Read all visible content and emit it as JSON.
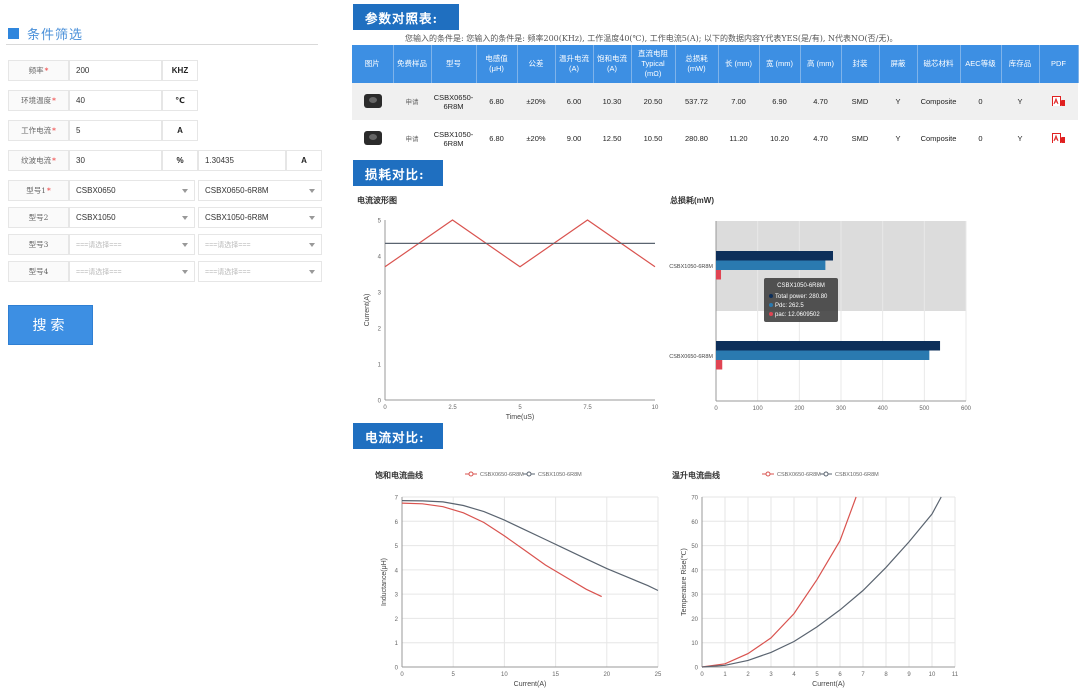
{
  "filter": {
    "title": "条件筛选",
    "rows": [
      {
        "label": "频率",
        "required": true,
        "value": "200",
        "unit": "KHZ"
      },
      {
        "label": "环境温度",
        "required": true,
        "value": "40",
        "unit": "℃"
      },
      {
        "label": "工作电流",
        "required": true,
        "value": "5",
        "unit": "A"
      },
      {
        "label": "纹波电流",
        "required": true,
        "value": "30",
        "unit": "%",
        "extra_value": "1.30435",
        "extra_unit": "A"
      }
    ],
    "models": [
      {
        "label": "型号1",
        "required": true,
        "series": "CSBX0650",
        "part": "CSBX0650-6R8M",
        "placeholder": false
      },
      {
        "label": "型号2",
        "required": false,
        "series": "CSBX1050",
        "part": "CSBX1050-6R8M",
        "placeholder": false
      },
      {
        "label": "型号3",
        "required": false,
        "series": "===请选择===",
        "part": "===请选择===",
        "placeholder": true
      },
      {
        "label": "型号4",
        "required": false,
        "series": "===请选择===",
        "part": "===请选择===",
        "placeholder": true
      }
    ],
    "search_label": "搜索"
  },
  "params": {
    "title": "参数对照表:",
    "condition_text": "您输入的条件是: 您输入的条件是: 频率200(KHz), 工作温度40(℃), 工作电流5(A); 以下的数据内容Y代表YES(是/有), N代表NO(否/无)。",
    "headers": [
      "图片",
      "免费样品",
      "型号",
      "电感值 (μH)",
      "公差",
      "温升电流 (A)",
      "饱和电流 (A)",
      "直流电阻 Typical (mΩ)",
      "总损耗 (mW)",
      "长 (mm)",
      "宽 (mm)",
      "高 (mm)",
      "封装",
      "屏蔽",
      "磁芯材料",
      "AEC等级",
      "库存品",
      "PDF"
    ],
    "rows": [
      {
        "sample": "申请",
        "model": "CSBX0650-6R8M",
        "inductance": "6.80",
        "tolerance": "±20%",
        "temp_rise": "6.00",
        "saturation": "10.30",
        "dcr": "20.50",
        "loss": "537.72",
        "length": "7.00",
        "width": "6.90",
        "height": "4.70",
        "package": "SMD",
        "shield": "Y",
        "core": "Composite",
        "aec": "0",
        "stock": "Y"
      },
      {
        "sample": "申请",
        "model": "CSBX1050-6R8M",
        "inductance": "6.80",
        "tolerance": "±20%",
        "temp_rise": "9.00",
        "saturation": "12.50",
        "dcr": "10.50",
        "loss": "280.80",
        "length": "11.20",
        "width": "10.20",
        "height": "4.70",
        "package": "SMD",
        "shield": "Y",
        "core": "Composite",
        "aec": "0",
        "stock": "Y"
      }
    ]
  },
  "loss_section": {
    "title": "损耗对比:"
  },
  "current_section": {
    "title": "电流对比:"
  },
  "colors": {
    "accent": "#3d8fe3",
    "header_dark": "#1f6fc0",
    "red": "#d9534f",
    "navy": "#0d2f5a",
    "teal": "#2a7ab0",
    "gray": "#5a6470"
  },
  "chart_data": [
    {
      "type": "line",
      "title": "电流波形图",
      "xlabel": "Time(uS)",
      "ylabel": "Current(A)",
      "xlim": [
        0,
        10
      ],
      "ylim": [
        0,
        5
      ],
      "xticks": [
        0,
        2.5,
        5,
        7.5,
        10
      ],
      "yticks": [
        0,
        1,
        2,
        3,
        4,
        5
      ],
      "series": [
        {
          "color": "#d9534f",
          "x": [
            0,
            2.5,
            5,
            7.5,
            10
          ],
          "y": [
            3.7,
            5.0,
            3.7,
            5.0,
            3.7
          ]
        },
        {
          "color": "#5a6470",
          "x": [
            0,
            10
          ],
          "y": [
            4.35,
            4.35
          ]
        }
      ]
    },
    {
      "type": "bar",
      "orientation": "horizontal",
      "title": "总损耗(mW)",
      "categories": [
        "CSBX1050-6R8M",
        "CSBX0650-6R8M"
      ],
      "xlim": [
        0,
        600
      ],
      "xticks": [
        0,
        100,
        200,
        300,
        400,
        500,
        600
      ],
      "series": [
        {
          "name": "Total power",
          "color": "#0d2f5a",
          "values": [
            280.8,
            537.72
          ]
        },
        {
          "name": "Pdc",
          "color": "#2a7ab0",
          "values": [
            262.5,
            512
          ]
        },
        {
          "name": "pac",
          "color": "#e04452",
          "values": [
            12.0609502,
            15
          ]
        }
      ],
      "tooltip": {
        "title": "CSBX1050-6R8M",
        "lines": [
          "Total power: 280.80",
          "Pdc: 262.5",
          "pac: 12.0609502"
        ]
      }
    },
    {
      "type": "line",
      "title": "饱和电流曲线",
      "xlabel": "Current(A)",
      "ylabel": "Inductance(μH)",
      "xlim": [
        0,
        25
      ],
      "ylim": [
        0,
        7
      ],
      "xticks": [
        0,
        5,
        10,
        15,
        20,
        25
      ],
      "yticks": [
        0,
        1,
        2,
        3,
        4,
        5,
        6,
        7
      ],
      "legend": "top",
      "series": [
        {
          "name": "CSBX0650-6R8M",
          "color": "#d9534f",
          "x": [
            0,
            2,
            4,
            6,
            8,
            10,
            12,
            14,
            16,
            18,
            19.5
          ],
          "y": [
            6.75,
            6.72,
            6.6,
            6.35,
            5.95,
            5.4,
            4.8,
            4.2,
            3.7,
            3.2,
            2.9
          ]
        },
        {
          "name": "CSBX1050-6R8M",
          "color": "#5a6470",
          "x": [
            0,
            2,
            4,
            6,
            8,
            10,
            12,
            14,
            16,
            18,
            20,
            22,
            24,
            25
          ],
          "y": [
            6.85,
            6.84,
            6.8,
            6.65,
            6.4,
            6.05,
            5.65,
            5.25,
            4.85,
            4.45,
            4.05,
            3.7,
            3.35,
            3.15
          ]
        }
      ]
    },
    {
      "type": "line",
      "title": "温升电流曲线",
      "xlabel": "Current(A)",
      "ylabel": "Temperature Rise(℃)",
      "xlim": [
        0,
        11
      ],
      "ylim": [
        0,
        70
      ],
      "xticks": [
        0,
        1,
        2,
        3,
        4,
        5,
        6,
        7,
        8,
        9,
        10,
        11
      ],
      "yticks": [
        0,
        10,
        20,
        30,
        40,
        50,
        60,
        70
      ],
      "legend": "top",
      "series": [
        {
          "name": "CSBX0650-6R8M",
          "color": "#d9534f",
          "x": [
            0,
            1,
            2,
            3,
            4,
            5,
            6,
            6.7
          ],
          "y": [
            0,
            1.3,
            5.5,
            12,
            22,
            36,
            52,
            70
          ]
        },
        {
          "name": "CSBX1050-6R8M",
          "color": "#5a6470",
          "x": [
            0,
            1,
            2,
            3,
            4,
            5,
            6,
            7,
            8,
            9,
            10,
            10.4
          ],
          "y": [
            0,
            0.7,
            2.7,
            6,
            10.5,
            16.5,
            23.5,
            31.5,
            41,
            51.5,
            63,
            70
          ]
        }
      ]
    }
  ]
}
